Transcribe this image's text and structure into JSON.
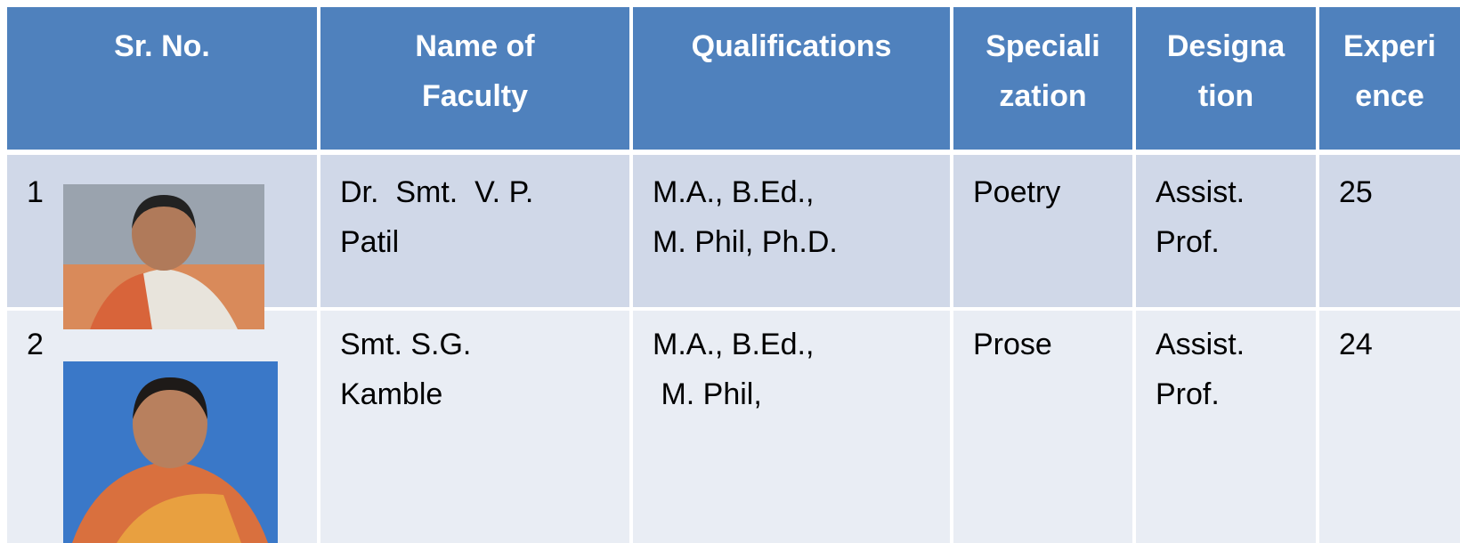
{
  "table": {
    "headers": [
      "Sr. No.",
      "Name of\nFaculty",
      "Qualifications",
      "Speciali\nzation",
      "Designa\ntion",
      "Experi\nence"
    ],
    "rows": [
      [
        1,
        "Dr.  Smt.  V. P.\nPatil",
        "M.A., B.Ed.,\nM. Phil, Ph.D.",
        "Poetry",
        "Assist.\nProf.",
        25
      ],
      [
        2,
        "Smt. S.G.\nKamble",
        "M.A., B.Ed.,\n M. Phil,",
        "Prose",
        "Assist.\nProf.",
        24
      ]
    ]
  }
}
